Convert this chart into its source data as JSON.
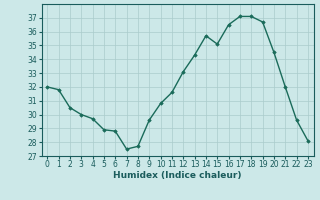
{
  "x": [
    0,
    1,
    2,
    3,
    4,
    5,
    6,
    7,
    8,
    9,
    10,
    11,
    12,
    13,
    14,
    15,
    16,
    17,
    18,
    19,
    20,
    21,
    22,
    23
  ],
  "y": [
    32,
    31.8,
    30.5,
    30,
    29.7,
    28.9,
    28.8,
    27.5,
    27.7,
    29.6,
    30.8,
    31.6,
    33.1,
    34.3,
    35.7,
    35.1,
    36.5,
    37.1,
    37.1,
    36.7,
    34.5,
    32,
    29.6,
    28.1
  ],
  "line_color": "#1a6b5a",
  "marker": "D",
  "marker_size": 1.8,
  "line_width": 1.0,
  "bg_color": "#cce8e8",
  "grid_color": "#aacccc",
  "xlabel": "Humidex (Indice chaleur)",
  "xlabel_fontsize": 6.5,
  "ylim": [
    27,
    38
  ],
  "xlim": [
    -0.5,
    23.5
  ],
  "yticks": [
    27,
    28,
    29,
    30,
    31,
    32,
    33,
    34,
    35,
    36,
    37
  ],
  "xticks": [
    0,
    1,
    2,
    3,
    4,
    5,
    6,
    7,
    8,
    9,
    10,
    11,
    12,
    13,
    14,
    15,
    16,
    17,
    18,
    19,
    20,
    21,
    22,
    23
  ],
  "tick_fontsize": 5.5
}
